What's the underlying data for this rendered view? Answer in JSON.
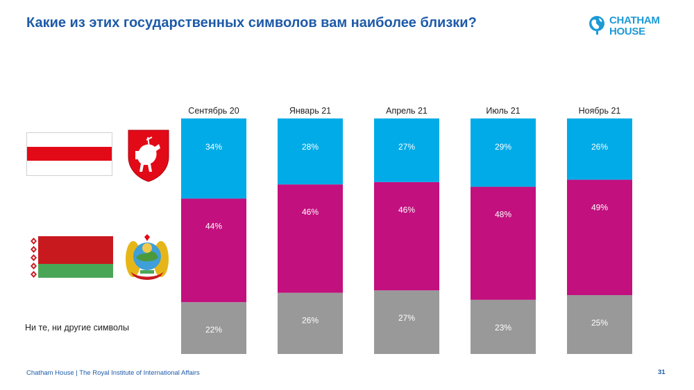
{
  "page": {
    "title": "Какие из этих государственных символов вам наиболее близки?",
    "logo": {
      "line1": "CHATHAM",
      "line2": "HOUSE"
    },
    "neither_label": "Ни те, ни другие символы",
    "footer": "Chatham House  |  The Royal Institute of International Affairs",
    "page_number": "31"
  },
  "colors": {
    "title": "#1d5aa8",
    "white_red_white": "#00abe8",
    "red_green": "#c2107e",
    "neither": "#999999"
  },
  "chart_data": {
    "type": "bar",
    "stacked": true,
    "orientation": "vertical",
    "categories": [
      "Сентябрь 20",
      "Январь 21",
      "Апрель 21",
      "Июль 21",
      "Ноябрь 21"
    ],
    "series": [
      {
        "values": [
          34,
          28,
          27,
          29,
          26
        ],
        "labels": [
          "34%",
          "28%",
          "27%",
          "29%",
          "26%"
        ],
        "color": "#00abe8"
      },
      {
        "values": [
          44,
          46,
          46,
          48,
          49
        ],
        "labels": [
          "44%",
          "46%",
          "46%",
          "48%",
          "49%"
        ],
        "color": "#c2107e"
      },
      {
        "values": [
          22,
          26,
          27,
          23,
          25
        ],
        "labels": [
          "22%",
          "26%",
          "27%",
          "23%",
          "25%"
        ],
        "color": "#999999"
      }
    ],
    "ylim": [
      0,
      100
    ],
    "grid": false,
    "legend": "none"
  }
}
